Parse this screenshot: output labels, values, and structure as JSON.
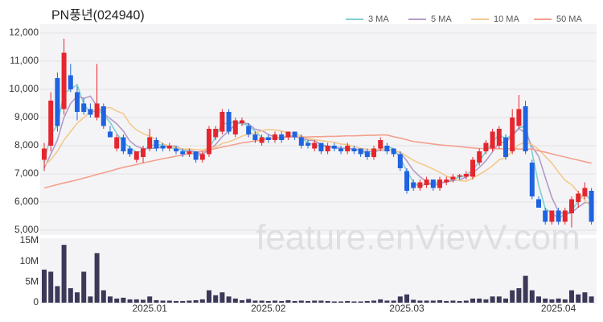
{
  "chart_data": [
    {
      "type": "candlestick",
      "title": "PN풍년(024940)",
      "watermark": "feature.enVievV.com",
      "up_color": "#e5262e",
      "down_color": "#1f63e0",
      "open": [
        7500,
        8000,
        10400,
        9300,
        10500,
        9900,
        9500,
        9300,
        9000,
        9400,
        8500,
        7900,
        8300,
        7900,
        7500,
        7600,
        7900,
        8200,
        8000,
        7900,
        7900,
        7800,
        7700,
        7800,
        7500,
        7700,
        8300,
        8500,
        9200,
        8400,
        8800,
        8700,
        8400,
        8100,
        8300,
        8200,
        8400,
        8300,
        8500,
        8300,
        8100,
        7900,
        8100,
        7800,
        8000,
        7900,
        7800,
        7900,
        7900,
        7800,
        7600,
        7900,
        8000,
        7900,
        7700,
        7100,
        6700,
        6500,
        6600,
        6800,
        6500,
        6700,
        6800,
        6900,
        6900,
        6900,
        7400,
        7800,
        7900,
        8000,
        8300,
        7800,
        8700,
        9400,
        7400,
        6100,
        5700,
        5300,
        5700,
        5300,
        5600,
        6000,
        6200,
        6400
      ],
      "high": [
        8100,
        9900,
        10600,
        11800,
        10900,
        10100,
        9700,
        9500,
        10900,
        9500,
        8700,
        8400,
        8400,
        8000,
        7800,
        8000,
        8600,
        8300,
        8100,
        8100,
        8000,
        7900,
        7900,
        7800,
        7800,
        8700,
        8700,
        9300,
        9300,
        9000,
        9000,
        8800,
        8500,
        8400,
        8400,
        8500,
        8500,
        8500,
        8500,
        8400,
        8200,
        8200,
        8100,
        8100,
        8100,
        8000,
        8100,
        8000,
        7900,
        7900,
        8000,
        8300,
        8100,
        7900,
        7800,
        7200,
        6800,
        6800,
        6900,
        6800,
        6900,
        6900,
        7000,
        7000,
        7100,
        7600,
        7900,
        8200,
        8600,
        8700,
        8400,
        9300,
        9800,
        9600,
        7500,
        6200,
        5800,
        5700,
        5800,
        5800,
        6200,
        6400,
        6700,
        6500
      ],
      "low": [
        7100,
        7800,
        8500,
        9100,
        9900,
        8900,
        9100,
        9000,
        8900,
        8600,
        8300,
        7800,
        7700,
        7600,
        7400,
        7400,
        7800,
        7800,
        7800,
        7800,
        7700,
        7600,
        7600,
        7400,
        7400,
        7600,
        8200,
        8400,
        8400,
        8300,
        8700,
        8300,
        8100,
        8000,
        8100,
        8100,
        8100,
        8200,
        8200,
        7900,
        7900,
        7800,
        7700,
        7700,
        7800,
        7700,
        7700,
        7700,
        7600,
        7500,
        7500,
        7800,
        7700,
        7600,
        7100,
        6300,
        6400,
        6400,
        6500,
        6400,
        6400,
        6600,
        6700,
        6800,
        6800,
        6800,
        7300,
        7700,
        7800,
        7900,
        7500,
        7700,
        8600,
        7700,
        6100,
        5800,
        5200,
        5200,
        5200,
        5200,
        5100,
        5800,
        6100,
        5200
      ],
      "close": [
        7900,
        9600,
        8700,
        11300,
        10000,
        9200,
        9200,
        9100,
        9500,
        8700,
        8300,
        8300,
        7800,
        7700,
        7800,
        7900,
        8300,
        7900,
        7900,
        8000,
        7800,
        7700,
        7800,
        7500,
        7700,
        8600,
        8600,
        9200,
        8500,
        8900,
        8900,
        8400,
        8200,
        8300,
        8200,
        8400,
        8200,
        8500,
        8300,
        8000,
        8000,
        8100,
        7800,
        8000,
        7900,
        7800,
        8000,
        7800,
        7700,
        7600,
        7900,
        8200,
        7800,
        7700,
        7200,
        6400,
        6500,
        6700,
        6800,
        6500,
        6800,
        6800,
        6900,
        6950,
        7000,
        7500,
        7800,
        8100,
        8500,
        8600,
        7600,
        9000,
        9300,
        7800,
        6200,
        5800,
        5300,
        5700,
        5300,
        5700,
        6100,
        6300,
        6500,
        5300
      ],
      "series": [
        {
          "name": "3 MA",
          "color": "#7fcfcf",
          "values": [
            7400,
            8400,
            8730,
            9870,
            10000,
            10170,
            9470,
            9170,
            9270,
            9100,
            8830,
            8430,
            8130,
            7930,
            7770,
            7800,
            8000,
            8030,
            8030,
            7930,
            7900,
            7830,
            7770,
            7670,
            7670,
            7930,
            8300,
            8800,
            8770,
            8870,
            8770,
            8730,
            8500,
            8300,
            8230,
            8300,
            8270,
            8370,
            8330,
            8270,
            8100,
            8030,
            7970,
            7970,
            7900,
            7900,
            7900,
            7870,
            7830,
            7700,
            7730,
            7900,
            7970,
            7900,
            7570,
            7100,
            6700,
            6530,
            6670,
            6670,
            6700,
            6700,
            6830,
            6880,
            6950,
            7150,
            7430,
            7800,
            8130,
            8400,
            8230,
            8400,
            8630,
            8700,
            7770,
            6600,
            5770,
            5600,
            5430,
            5570,
            5700,
            6030,
            6300,
            6030
          ]
        },
        {
          "name": "5 MA",
          "color": "#b39cc8",
          "values": [
            7200,
            7700,
            8200,
            9000,
            9500,
            9760,
            9680,
            9760,
            9400,
            9140,
            8960,
            8780,
            8520,
            8160,
            7980,
            7900,
            7900,
            7920,
            7960,
            8000,
            7980,
            7860,
            7840,
            7760,
            7700,
            7860,
            8040,
            8320,
            8520,
            8760,
            8820,
            8780,
            8580,
            8540,
            8400,
            8300,
            8260,
            8320,
            8320,
            8280,
            8200,
            8180,
            8040,
            7980,
            7960,
            7920,
            7900,
            7900,
            7840,
            7780,
            7800,
            7840,
            7840,
            7840,
            7760,
            7460,
            7120,
            6900,
            6720,
            6580,
            6660,
            6720,
            6760,
            6790,
            6890,
            7030,
            7230,
            7470,
            7780,
            8100,
            8120,
            8360,
            8600,
            8460,
            7980,
            7620,
            6880,
            6160,
            5660,
            5560,
            5620,
            5820,
            5980,
            5980
          ]
        },
        {
          "name": "10 MA",
          "color": "#f4c98c",
          "values": [
            7300,
            7500,
            7800,
            8200,
            8500,
            8800,
            9000,
            9200,
            9300,
            9320,
            9360,
            9230,
            9140,
            8780,
            8560,
            8430,
            8340,
            8220,
            8060,
            7990,
            7940,
            7880,
            7880,
            7860,
            7850,
            7920,
            7950,
            8080,
            8140,
            8230,
            8340,
            8410,
            8450,
            8530,
            8580,
            8560,
            8520,
            8450,
            8430,
            8340,
            8250,
            8220,
            8180,
            8150,
            8120,
            8060,
            8040,
            7970,
            7910,
            7870,
            7860,
            7870,
            7870,
            7840,
            7770,
            7630,
            7480,
            7370,
            7280,
            7170,
            7060,
            6920,
            6830,
            6760,
            6740,
            6850,
            6980,
            7120,
            7290,
            7500,
            7580,
            7800,
            8040,
            8120,
            8040,
            7870,
            7620,
            7380,
            7060,
            6770,
            6620,
            6350,
            6070,
            5820
          ]
        },
        {
          "name": "50 MA",
          "color": "#f4a08f",
          "values": [
            6500,
            6560,
            6620,
            6680,
            6730,
            6790,
            6850,
            6910,
            6980,
            7040,
            7100,
            7170,
            7230,
            7280,
            7330,
            7390,
            7440,
            7490,
            7540,
            7580,
            7630,
            7670,
            7710,
            7760,
            7800,
            7850,
            7900,
            7950,
            8000,
            8050,
            8100,
            8130,
            8170,
            8200,
            8230,
            8270,
            8300,
            8300,
            8310,
            8310,
            8310,
            8320,
            8320,
            8330,
            8330,
            8340,
            8350,
            8350,
            8360,
            8370,
            8370,
            8380,
            8380,
            8320,
            8270,
            8210,
            8150,
            8120,
            8090,
            8060,
            8030,
            8010,
            7990,
            7970,
            7940,
            7920,
            7900,
            7900,
            7900,
            7890,
            7890,
            7890,
            7880,
            7880,
            7880,
            7820,
            7770,
            7710,
            7650,
            7600,
            7540,
            7490,
            7430,
            7380
          ]
        }
      ],
      "ylim": [
        5000,
        12000
      ],
      "yticks": [
        {
          "value": 5000,
          "label": "5,000"
        },
        {
          "value": 6000,
          "label": "6,000"
        },
        {
          "value": 7000,
          "label": "7,000"
        },
        {
          "value": 8000,
          "label": "8,000"
        },
        {
          "value": 9000,
          "label": "9,000"
        },
        {
          "value": 10000,
          "label": "10,000"
        },
        {
          "value": 11000,
          "label": "11,000"
        },
        {
          "value": 12000,
          "label": "12,000"
        }
      ],
      "grid": true
    },
    {
      "type": "bar",
      "color": "#3b3858",
      "categories": [
        null,
        null,
        null,
        null,
        null,
        null,
        null,
        null,
        null,
        null,
        null,
        null,
        null,
        null,
        null,
        null,
        "2025.01",
        null,
        null,
        null,
        null,
        null,
        null,
        null,
        null,
        null,
        null,
        null,
        null,
        null,
        null,
        null,
        null,
        null,
        "2025.02",
        null,
        null,
        null,
        null,
        null,
        null,
        null,
        null,
        null,
        null,
        null,
        null,
        null,
        null,
        null,
        null,
        null,
        null,
        null,
        null,
        "2025.03",
        null,
        null,
        null,
        null,
        null,
        null,
        null,
        null,
        null,
        null,
        null,
        null,
        null,
        null,
        null,
        null,
        null,
        null,
        null,
        null,
        null,
        null,
        "2025.04",
        null,
        null,
        null,
        null,
        null
      ],
      "values": [
        8000000,
        7500000,
        4000000,
        14000000,
        3500000,
        2500000,
        7500000,
        1500000,
        12000000,
        3000000,
        1500000,
        1000000,
        1200000,
        800000,
        800000,
        700000,
        1500000,
        600000,
        500000,
        500000,
        400000,
        400000,
        500000,
        600000,
        800000,
        3000000,
        1800000,
        2500000,
        1500000,
        1000000,
        600000,
        900000,
        500000,
        500000,
        400000,
        500000,
        400000,
        600000,
        400000,
        500000,
        400000,
        500000,
        500000,
        400000,
        300000,
        300000,
        400000,
        300000,
        300000,
        400000,
        500000,
        800000,
        500000,
        500000,
        1500000,
        2000000,
        700000,
        500000,
        500000,
        500000,
        600000,
        400000,
        500000,
        400000,
        500000,
        1000000,
        1000000,
        800000,
        1500000,
        1500000,
        1000000,
        3000000,
        3500000,
        6500000,
        3000000,
        1500000,
        1000000,
        800000,
        1000000,
        800000,
        3000000,
        2000000,
        2500000,
        1500000
      ],
      "ylim": [
        0,
        15000000
      ],
      "yticks": [
        0,
        {
          "value": 5000000,
          "label": "5M"
        },
        {
          "value": 10000000,
          "label": "10M"
        },
        {
          "value": 15000000,
          "label": "15M"
        }
      ]
    }
  ]
}
